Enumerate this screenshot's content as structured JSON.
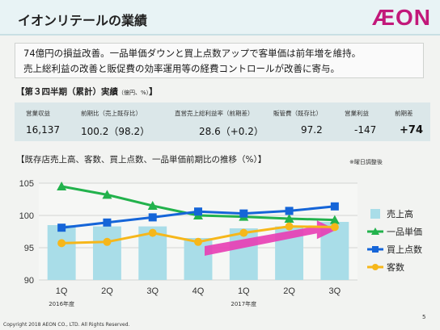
{
  "header": {
    "title": "イオンリテールの業績",
    "logo": "ÆON"
  },
  "summary": {
    "line1": "74億円の損益改善。一品単価ダウンと買上点数アップで客単価は前年増を維持。",
    "line2": "売上総利益の改善と販促費の効率運用等の経費コントロールが改善に寄与。"
  },
  "q3": {
    "heading": "【第３四半期（累計）実績",
    "unit": "（億円、%）",
    "heading_close": "】",
    "stats": [
      {
        "label": "営業収益",
        "value": "16,137"
      },
      {
        "label": "前期比（売上既存比）",
        "value": "100.2（98.2）"
      },
      {
        "label": "直営売上総利益率（前期差）",
        "value": "28.6（+0.2）"
      },
      {
        "label": "販管費（既存比）",
        "value": "97.2"
      },
      {
        "label": "営業利益",
        "value": "-147"
      },
      {
        "label": "前期差",
        "value": "+74"
      }
    ]
  },
  "chart_heading": "【既存店売上高、客数、買上点数、一品単価前期比の推移（%）】",
  "chart_note": "※曜日調整後",
  "chart_data": {
    "type": "bar+line",
    "categories": [
      "1Q",
      "2Q",
      "3Q",
      "4Q",
      "1Q",
      "2Q",
      "3Q"
    ],
    "year_labels": [
      {
        "text": "2016年度",
        "category_index": 0
      },
      {
        "text": "2017年度",
        "category_index": 4
      }
    ],
    "ylim": [
      90,
      105
    ],
    "yticks": [
      90,
      95,
      100,
      105
    ],
    "grid": true,
    "legend_position": "right",
    "bar_series": {
      "name": "売上高",
      "color": "#a9dde8",
      "values": [
        98.5,
        98.3,
        98.3,
        96.5,
        98.0,
        98.3,
        99.0
      ]
    },
    "line_series": [
      {
        "name": "一品単価",
        "color": "#22b24c",
        "marker": "triangle",
        "values": [
          104.5,
          103.2,
          101.5,
          100.0,
          99.8,
          99.5,
          99.3
        ]
      },
      {
        "name": "買上点数",
        "color": "#1565d8",
        "marker": "square",
        "values": [
          98.1,
          98.9,
          99.7,
          100.6,
          100.3,
          100.7,
          101.4
        ]
      },
      {
        "name": "客数",
        "color": "#f6b71a",
        "marker": "circle",
        "values": [
          95.7,
          95.9,
          97.3,
          95.9,
          97.3,
          98.3,
          98.2
        ]
      }
    ],
    "trend_arrow_color": "#e83cb4"
  },
  "footer": {
    "copyright": "Copyright 2018 AEON CO., LTD. All Rights Reserved.",
    "page": "5"
  }
}
